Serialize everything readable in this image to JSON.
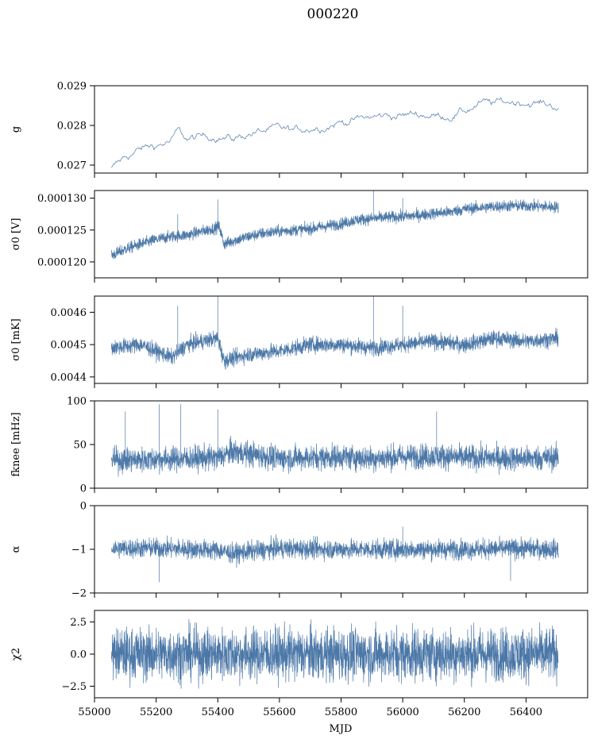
{
  "figure": {
    "title": "000220",
    "xlabel": "MJD",
    "xlim": [
      55000,
      56600
    ],
    "xticks": [
      55000,
      55200,
      55400,
      55600,
      55800,
      56000,
      56200,
      56400
    ],
    "xtick_labels": [
      "55000",
      "55200",
      "55400",
      "55600",
      "55800",
      "56000",
      "56200",
      "56400"
    ],
    "series_color": "#4c78a8"
  },
  "chart_data": [
    {
      "type": "line",
      "ylabel": "g",
      "ylim": [
        0.0268,
        0.029
      ],
      "yticks": [
        0.027,
        0.028,
        0.029
      ],
      "ytick_labels": [
        "0.027",
        "0.028",
        "0.029"
      ],
      "x": [
        55055,
        55100,
        55150,
        55200,
        55250,
        55270,
        55300,
        55350,
        55400,
        55450,
        55500,
        55550,
        55600,
        55650,
        55700,
        55750,
        55800,
        55850,
        55900,
        55950,
        56000,
        56050,
        56100,
        56150,
        56200,
        56250,
        56300,
        56350,
        56400,
        56450,
        56505
      ],
      "values": [
        0.0269,
        0.0272,
        0.0274,
        0.0275,
        0.0276,
        0.02785,
        0.02765,
        0.0277,
        0.02775,
        0.02765,
        0.0278,
        0.02785,
        0.0279,
        0.02785,
        0.02795,
        0.028,
        0.0281,
        0.02815,
        0.0282,
        0.02825,
        0.02825,
        0.0283,
        0.02825,
        0.02825,
        0.02835,
        0.02855,
        0.02855,
        0.0286,
        0.0286,
        0.02855,
        0.02848
      ],
      "noise": 6e-05,
      "noise_pattern": "wander"
    },
    {
      "type": "line",
      "ylabel": "σ0 [V]",
      "ylim": [
        0.0001175,
        0.0001312
      ],
      "yticks": [
        0.00012,
        0.000125,
        0.00013
      ],
      "ytick_labels": [
        "0.000120",
        "0.000125",
        "0.000130"
      ],
      "x": [
        55055,
        55100,
        55150,
        55200,
        55250,
        55300,
        55350,
        55405,
        55420,
        55450,
        55500,
        55550,
        55600,
        55650,
        55700,
        55750,
        55800,
        55850,
        55900,
        55950,
        56000,
        56050,
        56100,
        56150,
        56200,
        56250,
        56300,
        56350,
        56400,
        56450,
        56505
      ],
      "values": [
        0.000121,
        0.000122,
        0.0001228,
        0.0001235,
        0.000124,
        0.0001242,
        0.0001248,
        0.0001255,
        0.0001228,
        0.0001233,
        0.000124,
        0.0001245,
        0.0001248,
        0.000125,
        0.0001252,
        0.0001256,
        0.000126,
        0.0001266,
        0.0001268,
        0.000127,
        0.0001271,
        0.0001273,
        0.0001276,
        0.0001278,
        0.0001283,
        0.0001285,
        0.0001287,
        0.0001288,
        0.0001288,
        0.0001287,
        0.0001286
      ],
      "noise": 4.5e-07,
      "noise_pattern": "dense",
      "spikes": [
        [
          55270,
          0.0001275
        ],
        [
          55400,
          0.0001298
        ],
        [
          55905,
          0.0001312
        ],
        [
          56000,
          0.00013
        ]
      ]
    },
    {
      "type": "line",
      "ylabel": "σ0 [mK]",
      "ylim": [
        0.00438,
        0.00465
      ],
      "yticks": [
        0.0044,
        0.0045,
        0.0046
      ],
      "ytick_labels": [
        "0.0044",
        "0.0045",
        "0.0046"
      ],
      "x": [
        55055,
        55150,
        55250,
        55300,
        55400,
        55420,
        55500,
        55600,
        55700,
        55800,
        55900,
        56000,
        56100,
        56200,
        56300,
        56400,
        56505
      ],
      "values": [
        0.00449,
        0.0045,
        0.00446,
        0.0045,
        0.00452,
        0.00445,
        0.00447,
        0.00448,
        0.0045,
        0.0045,
        0.00449,
        0.0045,
        0.00451,
        0.0045,
        0.00452,
        0.00451,
        0.00452
      ],
      "noise": 1.2e-05,
      "noise_pattern": "dense",
      "spikes": [
        [
          55270,
          0.00462
        ],
        [
          55400,
          0.00465
        ],
        [
          55905,
          0.00465
        ],
        [
          56000,
          0.00462
        ]
      ]
    },
    {
      "type": "line",
      "ylabel": "fknee [mHz]",
      "ylim": [
        0,
        100
      ],
      "yticks": [
        0,
        50,
        100
      ],
      "ytick_labels": [
        "0",
        "50",
        "100"
      ],
      "x": [
        55055,
        55200,
        55400,
        55450,
        55600,
        55800,
        55900,
        56000,
        56100,
        56200,
        56400,
        56505
      ],
      "values": [
        32,
        33,
        35,
        42,
        34,
        36,
        34,
        36,
        37,
        35,
        34,
        35
      ],
      "noise": 7,
      "noise_pattern": "dense",
      "spikes": [
        [
          55100,
          88
        ],
        [
          55210,
          96
        ],
        [
          55280,
          96
        ],
        [
          55400,
          90
        ],
        [
          56110,
          88
        ]
      ]
    },
    {
      "type": "line",
      "ylabel": "α",
      "ylim": [
        -2,
        0
      ],
      "yticks": [
        -2,
        -1,
        0
      ],
      "ytick_labels": [
        "−2",
        "−1",
        "0"
      ],
      "x": [
        55055,
        55200,
        55400,
        55450,
        55500,
        55600,
        55800,
        55900,
        56000,
        56200,
        56400,
        56505
      ],
      "values": [
        -0.98,
        -0.97,
        -1.02,
        -1.1,
        -1.05,
        -0.98,
        -1.0,
        -1.0,
        -1.0,
        -1.0,
        -0.98,
        -1.0
      ],
      "noise": 0.11,
      "noise_pattern": "dense",
      "spikes": [
        [
          55210,
          -1.75
        ],
        [
          56000,
          -0.48
        ],
        [
          56350,
          -1.72
        ]
      ]
    },
    {
      "type": "line",
      "ylabel": "χ2",
      "ylim": [
        -3.4,
        3.4
      ],
      "yticks": [
        -2.5,
        0.0,
        2.5
      ],
      "ytick_labels": [
        "−2.5",
        "0.0",
        "2.5"
      ],
      "x": [
        55055,
        56505
      ],
      "values": [
        0,
        0
      ],
      "noise": 1.0,
      "noise_pattern": "dense"
    }
  ]
}
